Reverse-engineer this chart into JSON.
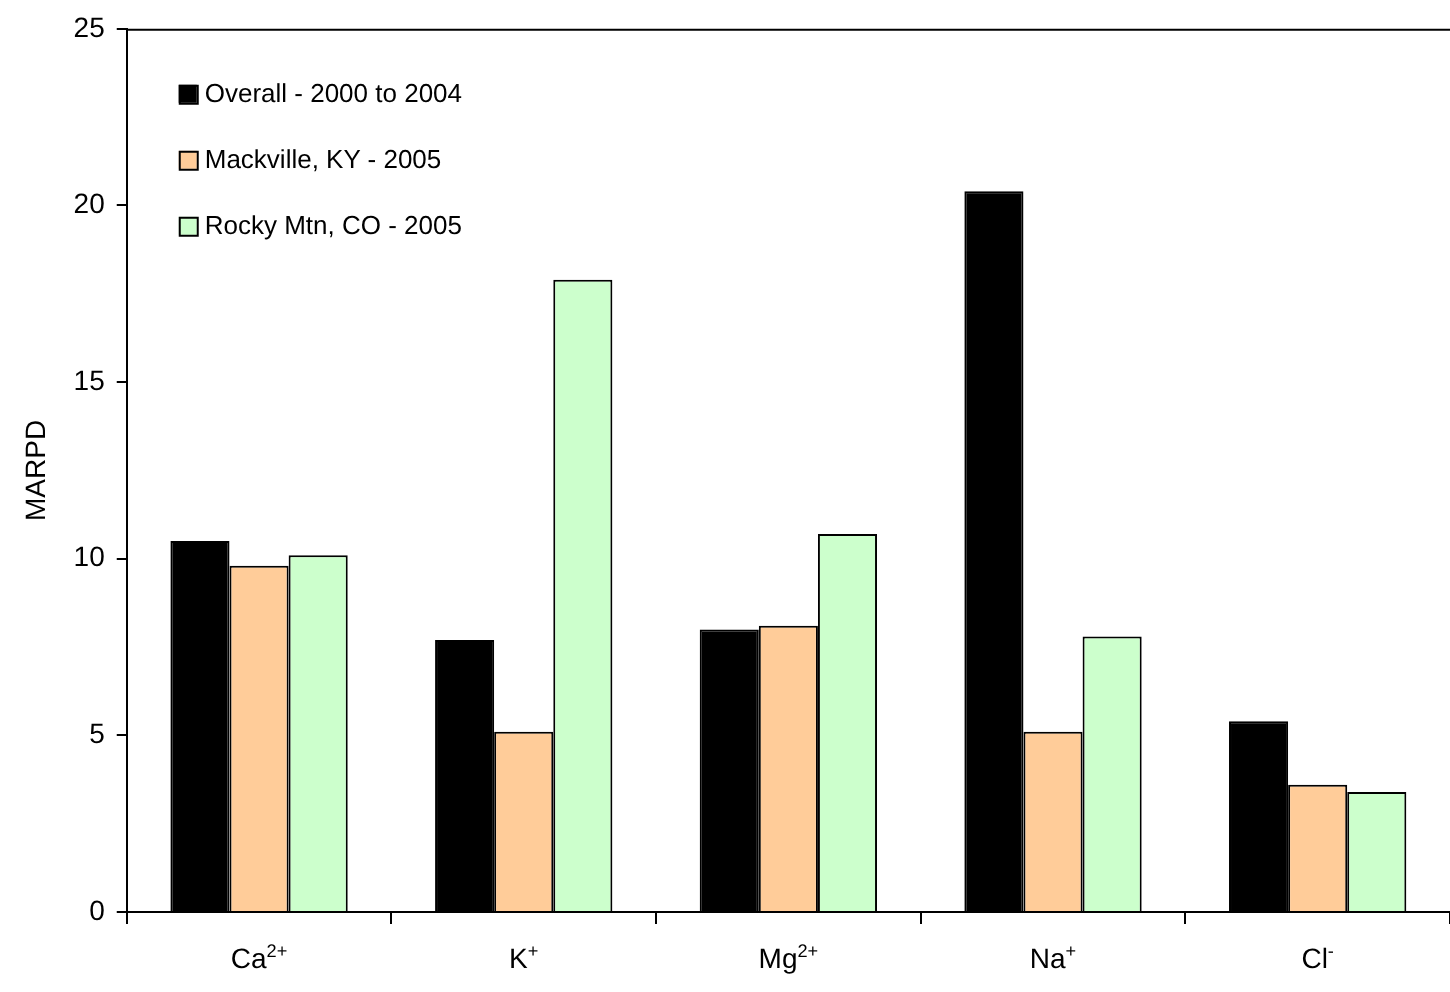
{
  "chart_data": {
    "type": "bar",
    "ylabel": "MARPD",
    "categories": [
      "Ca$^{2+}$",
      "K$^{+}$",
      "Mg$^{2+}$",
      "Na$^{+}$",
      "Cl$^{-}$"
    ],
    "series": [
      {
        "name": "Overall - 2000 to 2004",
        "color": "#000000",
        "values": [
          10.5,
          7.7,
          8.0,
          20.4,
          5.4
        ]
      },
      {
        "name": "Mackville, KY - 2005",
        "color": "#ffcc99",
        "values": [
          9.8,
          5.1,
          8.1,
          5.1,
          3.6
        ]
      },
      {
        "name": "Rocky Mtn, CO - 2005",
        "color": "#ccffcc",
        "values": [
          10.1,
          17.9,
          10.7,
          7.8,
          3.4
        ]
      }
    ],
    "ylim": [
      0,
      25
    ],
    "yticks": [
      0,
      5,
      10,
      15,
      20,
      25
    ],
    "legend": "top left"
  }
}
